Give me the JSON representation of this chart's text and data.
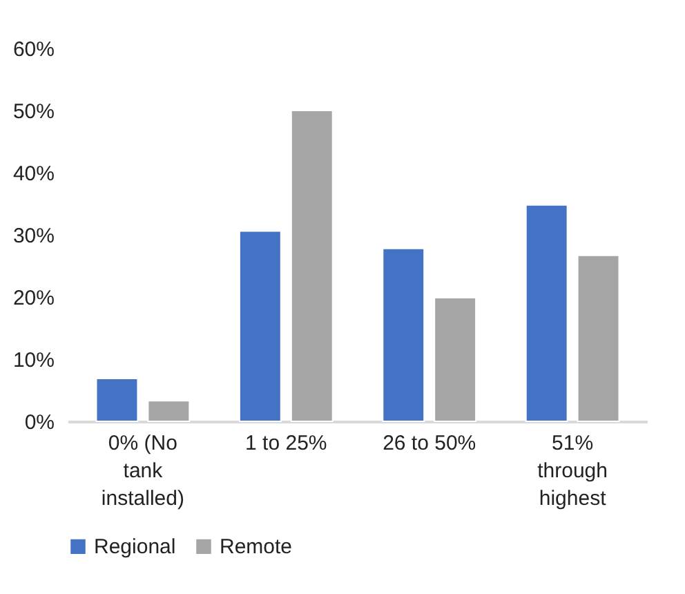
{
  "chart_data": {
    "type": "bar",
    "categories": [
      "0% (No tank installed)",
      "1 to 25%",
      "26 to 50%",
      "51% through highest"
    ],
    "series": [
      {
        "name": "Regional",
        "color": "#4472c4",
        "values": [
          6.9,
          30.6,
          27.8,
          34.8
        ]
      },
      {
        "name": "Remote",
        "color": "#a5a5a5",
        "values": [
          3.3,
          50,
          19.9,
          26.7
        ]
      }
    ],
    "ylim": [
      0,
      60
    ],
    "yticks": [
      {
        "value": 0,
        "label": "0%"
      },
      {
        "value": 10,
        "label": "10%"
      },
      {
        "value": 20,
        "label": "20%"
      },
      {
        "value": 30,
        "label": "30%"
      },
      {
        "value": 40,
        "label": "40%"
      },
      {
        "value": 50,
        "label": "50%"
      },
      {
        "value": 60,
        "label": "60%"
      }
    ],
    "grid": false,
    "legend": "bottom"
  }
}
